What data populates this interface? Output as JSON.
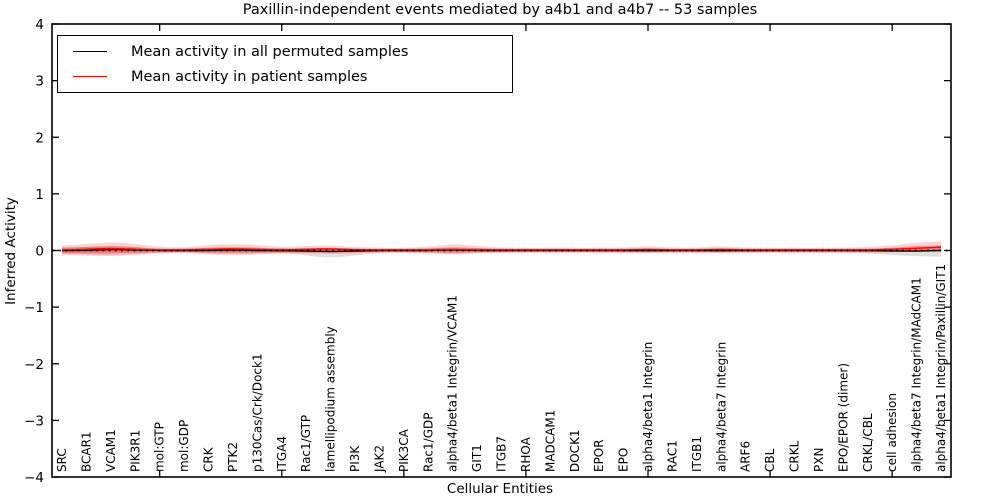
{
  "figure": {
    "title": "Paxillin-independent events mediated by a4b1 and a4b7 -- 53 samples",
    "xlabel": "Cellular Entities",
    "ylabel": "Inferred Activity"
  },
  "legend": {
    "items": [
      {
        "label": "Mean activity in all permuted samples",
        "color": "#000000"
      },
      {
        "label": "Mean activity in patient samples",
        "color": "#ff0000"
      }
    ]
  },
  "chart_data": {
    "type": "line",
    "title": "Paxillin-independent events mediated by a4b1 and a4b7 -- 53 samples",
    "xlabel": "Cellular Entities",
    "ylabel": "Inferred Activity",
    "ylim": [
      -4,
      4
    ],
    "ytick_values": [
      4,
      3,
      2,
      1,
      0,
      -1,
      -2,
      -3,
      -4
    ],
    "ytick_labels": [
      "4",
      "3",
      "2",
      "1",
      "0",
      "−1",
      "−2",
      "−3",
      "−4"
    ],
    "x_major_tick_indices": [
      4,
      9,
      14,
      19,
      24,
      29,
      34
    ],
    "grid": false,
    "legend_position": "upper left",
    "categories": [
      "SRC",
      "BCAR1",
      "VCAM1",
      "PIK3R1",
      "mol:GTP",
      "mol:GDP",
      "CRK",
      "PTK2",
      "p130Cas/Crk/Dock1",
      "ITGA4",
      "Rac1/GTP",
      "lamellipodium assembly",
      "PI3K",
      "JAK2",
      "PIK3CA",
      "Rac1/GDP",
      "alpha4/beta1 Integrin/VCAM1",
      "GIT1",
      "ITGB7",
      "RHOA",
      "MADCAM1",
      "DOCK1",
      "EPOR",
      "EPO",
      "alpha4/beta1 Integrin",
      "RAC1",
      "ITGB1",
      "alpha4/beta7 Integrin",
      "ARF6",
      "CBL",
      "CRKL",
      "PXN",
      "EPO/EPOR (dimer)",
      "CRKL/CBL",
      "cell adhesion",
      "alpha4/beta7 Integrin/MAdCAM1",
      "alpha4/beta1 Integrin/Paxillin/GIT1"
    ],
    "series": [
      {
        "name": "Mean activity in all permuted samples",
        "color": "#000000",
        "style": "solid",
        "values": [
          0.0,
          0.0,
          0.02,
          0.01,
          0.0,
          0.0,
          0.0,
          0.01,
          0.0,
          0.0,
          -0.01,
          -0.02,
          -0.01,
          0.0,
          0.0,
          0.0,
          0.01,
          0.0,
          0.0,
          0.0,
          0.0,
          0.0,
          0.0,
          0.0,
          0.0,
          0.0,
          0.0,
          0.0,
          0.0,
          0.0,
          0.0,
          0.0,
          0.0,
          0.0,
          -0.01,
          -0.01,
          0.0
        ]
      },
      {
        "name": "Mean activity in patient samples",
        "color": "#ff0000",
        "style": "solid",
        "values": [
          0.01,
          0.02,
          0.04,
          0.02,
          0.01,
          0.01,
          0.02,
          0.03,
          0.02,
          0.01,
          0.02,
          0.03,
          0.01,
          0.01,
          0.01,
          0.01,
          0.02,
          0.01,
          0.01,
          0.01,
          0.01,
          0.01,
          0.01,
          0.01,
          0.02,
          0.01,
          0.01,
          0.02,
          0.01,
          0.01,
          0.01,
          0.01,
          0.01,
          0.01,
          0.02,
          0.04,
          0.06
        ]
      }
    ],
    "bands": [
      {
        "name": "permuted-samples-spread",
        "color": "#888888",
        "opacity": 0.28,
        "hi": [
          0.05,
          0.06,
          0.08,
          0.06,
          0.03,
          0.03,
          0.05,
          0.05,
          0.05,
          0.04,
          0.04,
          0.04,
          0.04,
          0.03,
          0.03,
          0.04,
          0.06,
          0.04,
          0.03,
          0.03,
          0.03,
          0.03,
          0.03,
          0.03,
          0.04,
          0.03,
          0.03,
          0.04,
          0.03,
          0.03,
          0.03,
          0.03,
          0.03,
          0.03,
          0.04,
          0.05,
          0.05
        ],
        "lo": [
          -0.06,
          -0.07,
          -0.08,
          -0.06,
          -0.04,
          -0.03,
          -0.05,
          -0.06,
          -0.05,
          -0.04,
          -0.09,
          -0.13,
          -0.09,
          -0.04,
          -0.03,
          -0.04,
          -0.06,
          -0.04,
          -0.03,
          -0.03,
          -0.03,
          -0.03,
          -0.03,
          -0.03,
          -0.04,
          -0.03,
          -0.03,
          -0.04,
          -0.03,
          -0.03,
          -0.03,
          -0.03,
          -0.03,
          -0.05,
          -0.08,
          -0.1,
          -0.11
        ]
      },
      {
        "name": "patient-samples-spread-outer",
        "color": "#ff0000",
        "opacity": 0.18,
        "hi": [
          0.09,
          0.11,
          0.15,
          0.12,
          0.06,
          0.05,
          0.1,
          0.11,
          0.1,
          0.06,
          0.08,
          0.09,
          0.06,
          0.05,
          0.05,
          0.06,
          0.12,
          0.08,
          0.05,
          0.05,
          0.05,
          0.05,
          0.05,
          0.05,
          0.08,
          0.05,
          0.05,
          0.08,
          0.05,
          0.05,
          0.05,
          0.05,
          0.05,
          0.06,
          0.09,
          0.14,
          0.16
        ],
        "lo": [
          -0.08,
          -0.09,
          -0.1,
          -0.08,
          -0.05,
          -0.04,
          -0.07,
          -0.08,
          -0.07,
          -0.05,
          -0.05,
          -0.06,
          -0.05,
          -0.04,
          -0.04,
          -0.05,
          -0.07,
          -0.05,
          -0.04,
          -0.04,
          -0.04,
          -0.04,
          -0.04,
          -0.04,
          -0.05,
          -0.04,
          -0.04,
          -0.05,
          -0.04,
          -0.04,
          -0.04,
          -0.04,
          -0.04,
          -0.04,
          -0.03,
          -0.02,
          -0.01
        ]
      },
      {
        "name": "patient-samples-spread-inner",
        "color": "#ff0000",
        "opacity": 0.32,
        "hi": [
          0.05,
          0.06,
          0.08,
          0.06,
          0.03,
          0.03,
          0.05,
          0.06,
          0.05,
          0.03,
          0.04,
          0.05,
          0.03,
          0.03,
          0.03,
          0.03,
          0.06,
          0.04,
          0.03,
          0.03,
          0.03,
          0.03,
          0.03,
          0.03,
          0.04,
          0.03,
          0.03,
          0.04,
          0.03,
          0.03,
          0.03,
          0.03,
          0.03,
          0.03,
          0.05,
          0.08,
          0.09
        ],
        "lo": [
          -0.04,
          -0.05,
          -0.05,
          -0.04,
          -0.03,
          -0.02,
          -0.04,
          -0.04,
          -0.04,
          -0.03,
          -0.03,
          -0.03,
          -0.03,
          -0.02,
          -0.02,
          -0.03,
          -0.04,
          -0.03,
          -0.02,
          -0.02,
          -0.02,
          -0.02,
          -0.02,
          -0.02,
          -0.03,
          -0.02,
          -0.02,
          -0.03,
          -0.02,
          -0.02,
          -0.02,
          -0.02,
          -0.02,
          -0.02,
          -0.02,
          -0.01,
          -0.01
        ]
      }
    ],
    "zero_line": {
      "y": 0,
      "color": "#000000",
      "style": "dotted"
    }
  }
}
